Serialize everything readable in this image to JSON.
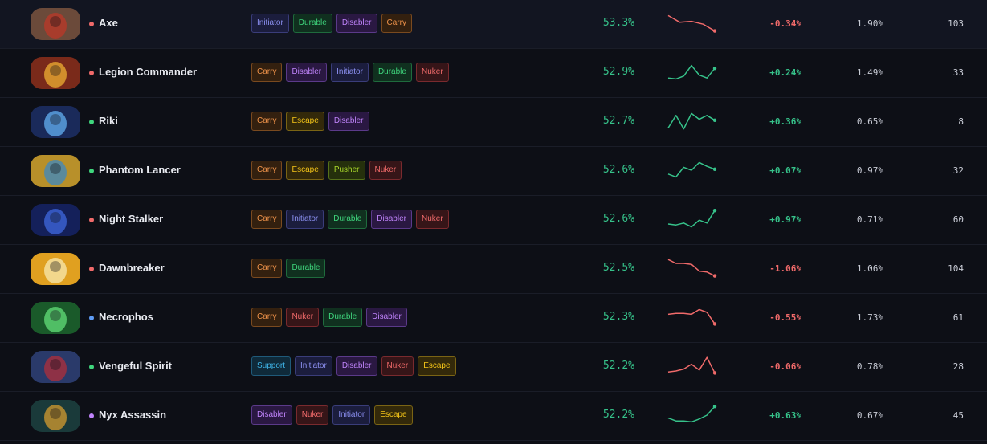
{
  "colors": {
    "positive": "#36c28a",
    "negative": "#f06a6a",
    "attr_str": "#f06a6a",
    "attr_agi": "#3fd67d",
    "attr_int": "#5e9cf5",
    "attr_uni": "#c084fc"
  },
  "role_styles": {
    "Initiator": {
      "fg": "#8b8ff0",
      "bg": "#1b1d3d",
      "border": "#3a3d7a"
    },
    "Durable": {
      "fg": "#3fd67d",
      "bg": "#10301f",
      "border": "#1f6b3d"
    },
    "Disabler": {
      "fg": "#c084fc",
      "bg": "#2a1842",
      "border": "#5b3a8a"
    },
    "Carry": {
      "fg": "#f0934a",
      "bg": "#33200f",
      "border": "#7a4a1f"
    },
    "Nuker": {
      "fg": "#f06a6a",
      "bg": "#361518",
      "border": "#7a2a2e"
    },
    "Escape": {
      "fg": "#f5c518",
      "bg": "#33290a",
      "border": "#7a6414"
    },
    "Pusher": {
      "fg": "#a8d62a",
      "bg": "#25300c",
      "border": "#56711a"
    },
    "Support": {
      "fg": "#3fb5e8",
      "bg": "#0f2a3a",
      "border": "#1f5a7a"
    }
  },
  "heroes": [
    {
      "name": "Axe",
      "attribute": "str",
      "portrait": {
        "bg": "#6b4a3a",
        "fg": "#b33a2a"
      },
      "roles": [
        "Initiator",
        "Durable",
        "Disabler",
        "Carry"
      ],
      "winrate": "53.3%",
      "trend": "down",
      "spark": [
        0.9,
        0.55,
        0.6,
        0.45,
        0.1
      ],
      "delta": "-0.34%",
      "pick_rate": "1.90%",
      "matches": "103"
    },
    {
      "name": "Legion Commander",
      "attribute": "str",
      "portrait": {
        "bg": "#7a2a1a",
        "fg": "#e0a030"
      },
      "roles": [
        "Carry",
        "Disabler",
        "Initiator",
        "Durable",
        "Nuker"
      ],
      "winrate": "52.9%",
      "trend": "up",
      "spark": [
        0.2,
        0.15,
        0.3,
        0.85,
        0.35,
        0.2,
        0.7
      ],
      "delta": "+0.24%",
      "pick_rate": "1.49%",
      "matches": "33"
    },
    {
      "name": "Riki",
      "attribute": "agi",
      "portrait": {
        "bg": "#1a2a5a",
        "fg": "#5aa0e0"
      },
      "roles": [
        "Carry",
        "Escape",
        "Disabler"
      ],
      "winrate": "52.7%",
      "trend": "up",
      "spark": [
        0.15,
        0.8,
        0.1,
        0.9,
        0.6,
        0.8,
        0.55
      ],
      "delta": "+0.36%",
      "pick_rate": "0.65%",
      "matches": "8"
    },
    {
      "name": "Phantom Lancer",
      "attribute": "agi",
      "portrait": {
        "bg": "#b8902a",
        "fg": "#4a8ab0"
      },
      "roles": [
        "Carry",
        "Escape",
        "Pusher",
        "Nuker"
      ],
      "winrate": "52.6%",
      "trend": "up",
      "spark": [
        0.3,
        0.15,
        0.65,
        0.5,
        0.9,
        0.7,
        0.55
      ],
      "delta": "+0.07%",
      "pick_rate": "0.97%",
      "matches": "32"
    },
    {
      "name": "Night Stalker",
      "attribute": "str",
      "portrait": {
        "bg": "#14205a",
        "fg": "#3a60d0"
      },
      "roles": [
        "Carry",
        "Initiator",
        "Durable",
        "Disabler",
        "Nuker"
      ],
      "winrate": "52.6%",
      "trend": "up",
      "spark": [
        0.25,
        0.2,
        0.3,
        0.1,
        0.45,
        0.3,
        0.95
      ],
      "delta": "+0.97%",
      "pick_rate": "0.71%",
      "matches": "60"
    },
    {
      "name": "Dawnbreaker",
      "attribute": "str",
      "portrait": {
        "bg": "#e0a020",
        "fg": "#f5e0a0"
      },
      "roles": [
        "Carry",
        "Durable"
      ],
      "winrate": "52.5%",
      "trend": "down",
      "spark": [
        0.95,
        0.75,
        0.75,
        0.7,
        0.35,
        0.3,
        0.1
      ],
      "delta": "-1.06%",
      "pick_rate": "1.06%",
      "matches": "104"
    },
    {
      "name": "Necrophos",
      "attribute": "int",
      "portrait": {
        "bg": "#1a5a2a",
        "fg": "#5ad070"
      },
      "roles": [
        "Carry",
        "Nuker",
        "Durable",
        "Disabler"
      ],
      "winrate": "52.3%",
      "trend": "down",
      "spark": [
        0.65,
        0.7,
        0.7,
        0.65,
        0.9,
        0.75,
        0.15
      ],
      "delta": "-0.55%",
      "pick_rate": "1.73%",
      "matches": "61"
    },
    {
      "name": "Vengeful Spirit",
      "attribute": "agi",
      "portrait": {
        "bg": "#2a3a6a",
        "fg": "#a03040"
      },
      "roles": [
        "Support",
        "Initiator",
        "Disabler",
        "Nuker",
        "Escape"
      ],
      "winrate": "52.2%",
      "trend": "down",
      "spark": [
        0.2,
        0.25,
        0.35,
        0.6,
        0.3,
        0.95,
        0.15
      ],
      "delta": "-0.06%",
      "pick_rate": "0.78%",
      "matches": "28"
    },
    {
      "name": "Nyx Assassin",
      "attribute": "uni",
      "portrait": {
        "bg": "#1a3a3a",
        "fg": "#c09030"
      },
      "roles": [
        "Disabler",
        "Nuker",
        "Initiator",
        "Escape"
      ],
      "winrate": "52.2%",
      "trend": "up",
      "spark": [
        0.35,
        0.2,
        0.2,
        0.15,
        0.3,
        0.5,
        0.95
      ],
      "delta": "+0.63%",
      "pick_rate": "0.67%",
      "matches": "45"
    }
  ]
}
